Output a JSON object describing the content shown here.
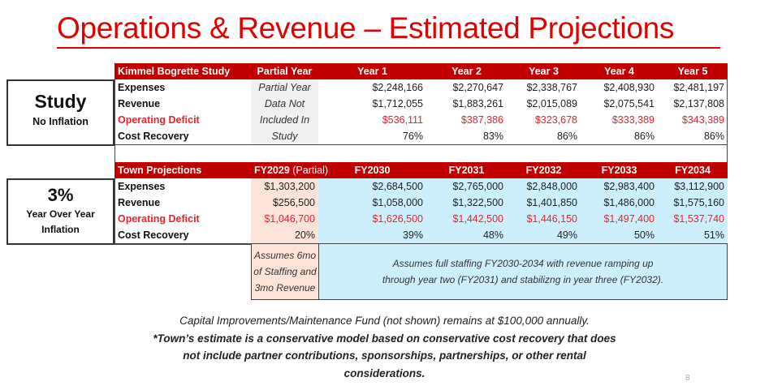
{
  "title": "Operations & Revenue – Estimated Projections",
  "study": {
    "side_title": "Study",
    "side_sub": "No Inflation",
    "headers": [
      "Kimmel Bogrette Study",
      "Partial Year",
      "Year 1",
      "Year 2",
      "Year 3",
      "Year 4",
      "Year 5"
    ],
    "rows": [
      {
        "label": "Expenses",
        "partial": "Partial Year",
        "values": [
          "$2,248,166",
          "$2,270,647",
          "$2,338,767",
          "$2,408,930",
          "$2,481,197"
        ]
      },
      {
        "label": "Revenue",
        "partial": "Data Not",
        "values": [
          "$1,712,055",
          "$1,883,261",
          "$2,015,089",
          "$2,075,541",
          "$2,137,808"
        ]
      },
      {
        "label": "Operating Deficit",
        "partial": "Included In",
        "values": [
          "$536,111",
          "$387,386",
          "$323,678",
          "$333,389",
          "$343,389"
        ]
      },
      {
        "label": "Cost Recovery",
        "partial": "Study",
        "values": [
          "76%",
          "83%",
          "86%",
          "86%",
          "86%"
        ]
      }
    ]
  },
  "town": {
    "side_title": "3%",
    "side_sub1": "Year Over Year",
    "side_sub2": "Inflation",
    "headers": [
      "Town Projections",
      "FY2029",
      "(Partial)",
      "FY2030",
      "FY2031",
      "FY2032",
      "FY2033",
      "FY2034"
    ],
    "rows": [
      {
        "label": "Expenses",
        "partial": "$1,303,200",
        "values": [
          "$2,684,500",
          "$2,765,000",
          "$2,848,000",
          "$2,983,400",
          "$3,112,900"
        ]
      },
      {
        "label": "Revenue",
        "partial": "$256,500",
        "values": [
          "$1,058,000",
          "$1,322,500",
          "$1,401,850",
          "$1,486,000",
          "$1,575,160"
        ]
      },
      {
        "label": "Operating Deficit",
        "partial": "$1,046,700",
        "values": [
          "$1,626,500",
          "$1,442,500",
          "$1,446,150",
          "$1,497,400",
          "$1,537,740"
        ]
      },
      {
        "label": "Cost Recovery",
        "partial": "20%",
        "values": [
          "39%",
          "48%",
          "49%",
          "50%",
          "51%"
        ]
      }
    ]
  },
  "notes": {
    "partial": [
      "Assumes 6mo",
      "of Staffing and",
      "3mo Revenue"
    ],
    "full": [
      "Assumes full staffing FY2030-2034 with revenue ramping up",
      "through year two (FY2031) and stabilizng in year three (FY2032)."
    ]
  },
  "footer": {
    "line1": "Capital Improvements/Maintenance Fund (not shown) remains at $100,000 annually.",
    "line2": "*Town’s estimate is a conservative model based on conservative cost recovery that does",
    "line3": "not include partner contributions, sponsorships, partnerships, or other rental",
    "line4": "considerations."
  },
  "page_number": "8",
  "colors": {
    "title": "#e00000",
    "header_bg": "#c00000",
    "deficit": "#f0202a",
    "peach": "#fde3d8",
    "blue": "#cdeefb"
  }
}
